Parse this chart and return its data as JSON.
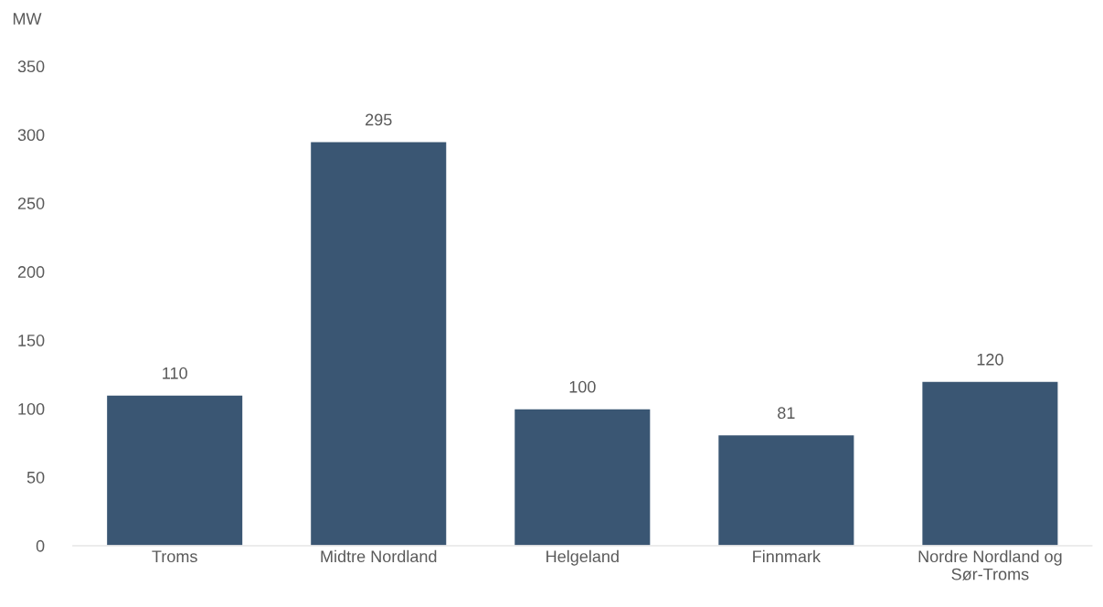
{
  "chart_data": {
    "type": "bar",
    "ylabel": "MW",
    "categories": [
      "Troms",
      "Midtre Nordland",
      "Helgeland",
      "Finnmark",
      "Nordre Nordland og Sør-Troms"
    ],
    "values": [
      110,
      295,
      100,
      81,
      120
    ],
    "color": "#3a5673",
    "ylim": [
      0,
      350
    ],
    "yticks": [
      0,
      50,
      100,
      150,
      200,
      250,
      300,
      350
    ],
    "grid": false,
    "data_labels": true
  }
}
